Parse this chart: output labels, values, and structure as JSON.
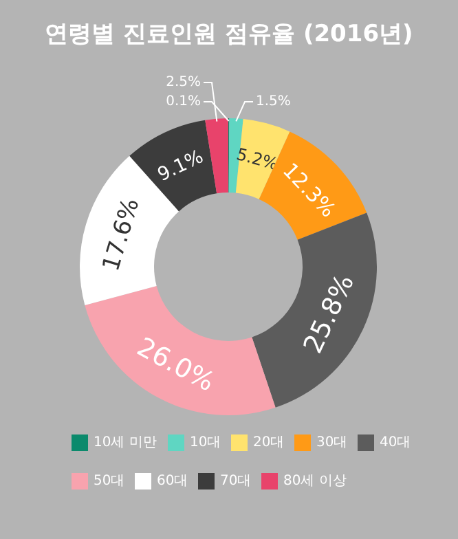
{
  "chart_data": {
    "type": "donut",
    "title": "연령별 진료인원 점유율 (2016년)",
    "categories": [
      "10세 미만",
      "10대",
      "20대",
      "30대",
      "40대",
      "50대",
      "60대",
      "70대",
      "80세 이상"
    ],
    "values": [
      0.1,
      1.5,
      5.2,
      12.3,
      25.8,
      26.0,
      17.6,
      9.1,
      2.5
    ],
    "colors": [
      "#0b8a6c",
      "#5fd6c2",
      "#ffe36e",
      "#ff9a16",
      "#5c5c5c",
      "#f8a3ae",
      "#ffffff",
      "#3c3c3c",
      "#e8436b"
    ],
    "value_labels": [
      "0.1%",
      "1.5%",
      "5.2%",
      "12.3%",
      "25.8%",
      "26.0%",
      "17.6%",
      "9.1%",
      "2.5%"
    ],
    "legend": "bottom"
  }
}
